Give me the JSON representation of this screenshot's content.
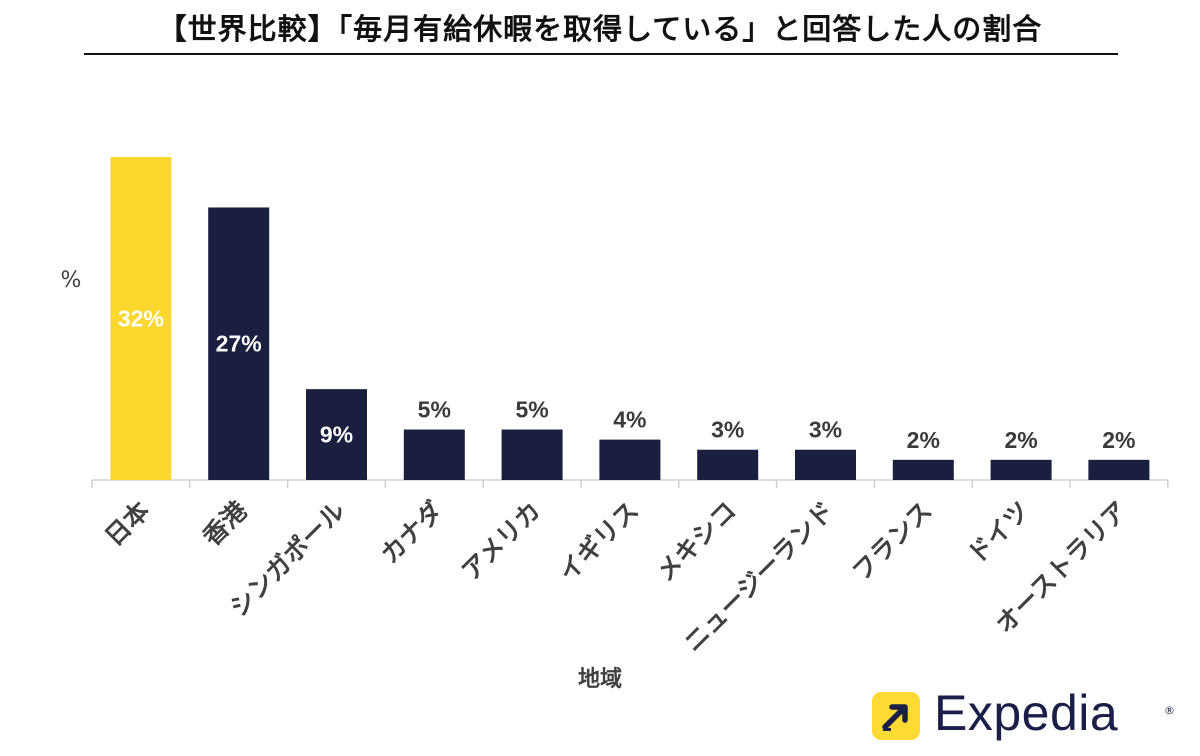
{
  "title": "【世界比較】「毎月有給休暇を取得している」と回答した人の割合",
  "colors": {
    "highlight": "#fcd72e",
    "bar": "#1a1f3f",
    "axis": "#d0d0d0",
    "axis_text": "#404040",
    "logo_bg": "#fddb32",
    "logo_text": "#1a1f4a"
  },
  "logo": {
    "text": "Expedia",
    "reg": "®",
    "icon": "arrow-up-right-icon"
  },
  "chart_data": {
    "type": "bar",
    "ylabel": "%",
    "xlabel": "地域",
    "ylim": [
      0,
      32
    ],
    "categories": [
      "日本",
      "香港",
      "シンガポール",
      "カナダ",
      "アメリカ",
      "イギリス",
      "メキシコ",
      "ニュージーランド",
      "フランス",
      "ドイツ",
      "オーストラリア"
    ],
    "values": [
      32,
      27,
      9,
      5,
      5,
      4,
      3,
      3,
      2,
      2,
      2
    ],
    "data_labels": [
      "32%",
      "27%",
      "9%",
      "5%",
      "5%",
      "4%",
      "3%",
      "3%",
      "2%",
      "2%",
      "2%"
    ],
    "highlight_index": 0,
    "grid": false
  }
}
